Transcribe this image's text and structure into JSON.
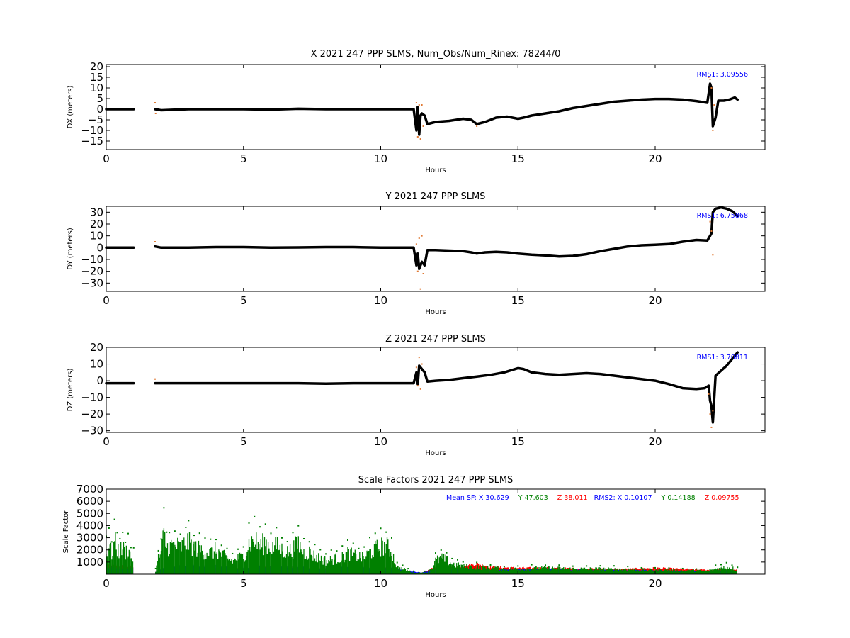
{
  "chart_data": [
    {
      "type": "scatter",
      "title": "X 2021 247 PPP  SLMS, Num_Obs/Num_Rinex: 78244/0",
      "xlabel": "Hours",
      "ylabel": "DX (meters)",
      "xlim": [
        0,
        24
      ],
      "ylim": [
        -19,
        21
      ],
      "xticks": [
        0,
        5,
        10,
        15,
        20
      ],
      "yticks": [
        -15,
        -10,
        -5,
        0,
        5,
        10,
        15,
        20
      ],
      "annotation": "RMS1:  3.09556",
      "annotation_color": "#0000ff",
      "series": [
        {
          "color": "#000000",
          "x": [
            0,
            0.5,
            1.0,
            null,
            1.78,
            2.0,
            3.0,
            4.0,
            5.0,
            6.0,
            7.0,
            8.0,
            9.0,
            10.0,
            11.2,
            11.3,
            11.35,
            11.4,
            11.45,
            11.5,
            11.6,
            11.7,
            12.0,
            12.5,
            13.0,
            13.3,
            13.5,
            13.8,
            14.2,
            14.6,
            15.0,
            15.2,
            15.5,
            16.0,
            16.5,
            17.0,
            17.5,
            18.0,
            18.5,
            19.0,
            19.5,
            20.0,
            20.5,
            21.0,
            21.5,
            21.9,
            22.0,
            22.05,
            22.1,
            22.2,
            22.3,
            22.5,
            22.7,
            22.9,
            23.0
          ],
          "y": [
            0,
            0,
            0,
            null,
            0,
            -0.5,
            0,
            0,
            0,
            -0.2,
            0.2,
            0,
            0,
            0,
            0,
            -10,
            1,
            -12,
            -3,
            -2,
            -3,
            -7,
            -6,
            -5.5,
            -4.5,
            -5,
            -7,
            -6,
            -4,
            -3.5,
            -4.5,
            -4,
            -3,
            -2,
            -1,
            0.5,
            1.5,
            2.5,
            3.5,
            4,
            4.5,
            4.8,
            4.8,
            4.5,
            3.8,
            3,
            12,
            10,
            -8,
            -4,
            4,
            4,
            4.5,
            5.5,
            4.5
          ]
        },
        {
          "color": "#e07a35",
          "x": [
            1.78,
            1.8,
            11.3,
            11.35,
            11.4,
            11.45,
            11.5,
            11.55,
            13.5,
            21.95,
            22.0,
            22.05,
            22.1,
            22.15
          ],
          "y": [
            3,
            -2,
            3,
            -13,
            2,
            -14,
            2,
            -8,
            -8,
            15,
            14,
            10,
            -10,
            2
          ]
        }
      ]
    },
    {
      "type": "scatter",
      "title": "Y 2021 247 PPP  SLMS",
      "xlabel": "Hours",
      "ylabel": "DY (meters)",
      "xlim": [
        0,
        24
      ],
      "ylim": [
        -37,
        35
      ],
      "xticks": [
        0,
        5,
        10,
        15,
        20
      ],
      "yticks": [
        -30,
        -20,
        -10,
        0,
        10,
        20,
        30
      ],
      "annotation": "RMS1:  6.75868",
      "annotation_color": "#0000ff",
      "series": [
        {
          "color": "#000000",
          "x": [
            0,
            0.5,
            1.0,
            null,
            1.78,
            2.0,
            3.0,
            4.0,
            5.0,
            6.0,
            7.0,
            8.0,
            9.0,
            10.0,
            11.2,
            11.3,
            11.35,
            11.4,
            11.5,
            11.6,
            11.7,
            12.0,
            12.5,
            13.0,
            13.3,
            13.5,
            13.8,
            14.2,
            14.6,
            15.0,
            15.5,
            16.0,
            16.5,
            17.0,
            17.5,
            18.0,
            18.5,
            19.0,
            19.5,
            20.0,
            20.5,
            21.0,
            21.5,
            21.9,
            22.0,
            22.05,
            22.1,
            22.2,
            22.4,
            22.6,
            22.8,
            23.0
          ],
          "y": [
            0,
            0,
            0,
            null,
            1,
            0,
            0,
            0.5,
            0.5,
            0,
            0.2,
            0.5,
            0.5,
            0,
            0,
            -15,
            -5,
            -18,
            -12,
            -15,
            -2,
            -2,
            -2.5,
            -3,
            -4,
            -5,
            -4,
            -3.5,
            -4,
            -5,
            -6,
            -6.5,
            -7.5,
            -7,
            -5.5,
            -3,
            -1,
            1,
            2,
            2.5,
            3,
            5,
            6.5,
            6,
            10,
            12,
            30,
            33,
            34,
            33,
            31,
            27
          ]
        },
        {
          "color": "#e07a35",
          "x": [
            1.78,
            11.3,
            11.35,
            11.4,
            11.45,
            11.5,
            11.55,
            22.0,
            22.05,
            22.1
          ],
          "y": [
            5,
            3,
            -20,
            8,
            -35,
            10,
            -22,
            22,
            14,
            -6
          ]
        }
      ]
    },
    {
      "type": "scatter",
      "title": "Z 2021 247 PPP  SLMS",
      "xlabel": "Hours",
      "ylabel": "DZ (meters)",
      "xlim": [
        0,
        24
      ],
      "ylim": [
        -31,
        20
      ],
      "xticks": [
        0,
        5,
        10,
        15,
        20
      ],
      "yticks": [
        -30,
        -20,
        -10,
        0,
        10,
        20
      ],
      "annotation": "RMS1:  3.70811",
      "annotation_color": "#0000ff",
      "series": [
        {
          "color": "#000000",
          "x": [
            0,
            0.5,
            1.0,
            null,
            1.78,
            2.0,
            3.0,
            4.0,
            5.0,
            6.0,
            7.0,
            8.0,
            9.0,
            10.0,
            11.2,
            11.3,
            11.35,
            11.4,
            11.5,
            11.6,
            11.7,
            12.0,
            12.5,
            13.0,
            13.5,
            14.0,
            14.5,
            15.0,
            15.2,
            15.5,
            16.0,
            16.5,
            17.0,
            17.5,
            18.0,
            18.5,
            19.0,
            19.5,
            20.0,
            20.5,
            21.0,
            21.5,
            21.8,
            21.95,
            22.0,
            22.05,
            22.1,
            22.2,
            22.4,
            22.6,
            22.8,
            23.0
          ],
          "y": [
            -1.5,
            -1.5,
            -1.5,
            null,
            -1.5,
            -1.5,
            -1.5,
            -1.5,
            -1.5,
            -1.5,
            -1.5,
            -1.8,
            -1.5,
            -1.5,
            -1.5,
            5,
            -2,
            9,
            7,
            5,
            -0.5,
            0,
            0.5,
            1.5,
            2.5,
            3.5,
            5,
            7.5,
            7,
            5,
            4,
            3.5,
            4,
            4.5,
            4,
            3,
            2,
            1,
            0,
            -2,
            -4.5,
            -5,
            -4.5,
            -3,
            -12,
            -15,
            -25,
            3,
            6,
            9,
            13,
            17
          ]
        },
        {
          "color": "#e07a35",
          "x": [
            1.78,
            11.3,
            11.35,
            11.4,
            11.45,
            11.5,
            21.95,
            22.0,
            22.05,
            22.1
          ],
          "y": [
            1,
            8,
            -3,
            14,
            -5,
            10,
            -8,
            -20,
            -28,
            -18
          ]
        }
      ]
    },
    {
      "type": "scatter",
      "title": "Scale Factors 2021 247 PPP  SLMS",
      "xlabel": "Hours",
      "ylabel": "Scale Factor",
      "xlim": [
        0,
        24
      ],
      "ylim": [
        0,
        7000
      ],
      "xticks": [
        0,
        5,
        10,
        15,
        20
      ],
      "yticks": [
        1000,
        2000,
        3000,
        4000,
        5000,
        6000,
        7000
      ],
      "annotation_parts": [
        {
          "text": "Mean SF: X  30.629",
          "color": "#0000ff"
        },
        {
          "text": "Y  47.603",
          "color": "#008000"
        },
        {
          "text": "Z  38.011",
          "color": "#ff0000"
        },
        {
          "text": "RMS2: X  0.10107",
          "color": "#0000ff"
        },
        {
          "text": "Y  0.14188",
          "color": "#008000"
        },
        {
          "text": "Z  0.09755",
          "color": "#ff0000"
        }
      ],
      "series": [
        {
          "color": "#ff0000",
          "x": [
            0,
            0.5,
            1.0,
            null,
            1.8,
            2.2,
            3.0,
            4.0,
            5.0,
            6.0,
            7.0,
            8.0,
            9.0,
            10.0,
            10.5,
            11.0,
            11.5,
            12.0,
            12.5,
            13.0,
            13.5,
            14.0,
            15.0,
            16.0,
            17.0,
            18.0,
            19.0,
            20.0,
            21.0,
            22.0,
            22.5,
            23.0
          ],
          "y": [
            900,
            800,
            700,
            null,
            200,
            700,
            700,
            600,
            500,
            700,
            600,
            500,
            500,
            700,
            500,
            250,
            100,
            700,
            700,
            800,
            1000,
            700,
            600,
            600,
            550,
            500,
            500,
            600,
            500,
            400,
            500,
            400
          ]
        },
        {
          "color": "#0000ff",
          "x": [
            0,
            0.5,
            1.0,
            null,
            1.8,
            2.2,
            3.0,
            4.0,
            5.0,
            5.5,
            6.0,
            7.0,
            8.0,
            9.0,
            10.0,
            10.5,
            11.0,
            11.5,
            12.0,
            12.5,
            13.0,
            14.0,
            15.0,
            16.0,
            17.0,
            18.0,
            19.0,
            20.0,
            21.0,
            22.0,
            22.5,
            23.0
          ],
          "y": [
            700,
            600,
            550,
            null,
            200,
            800,
            900,
            800,
            600,
            800,
            700,
            700,
            600,
            650,
            700,
            600,
            300,
            150,
            500,
            500,
            500,
            400,
            450,
            500,
            450,
            400,
            350,
            400,
            300,
            300,
            400,
            300
          ]
        },
        {
          "color": "#008000",
          "x": [
            0,
            0.1,
            0.2,
            0.3,
            0.4,
            0.5,
            0.6,
            0.7,
            0.8,
            0.9,
            1.0,
            null,
            1.8,
            1.9,
            2.0,
            2.1,
            2.2,
            2.3,
            2.5,
            2.7,
            2.9,
            3.0,
            3.2,
            3.4,
            3.6,
            3.8,
            4.0,
            4.2,
            4.4,
            4.6,
            4.8,
            5.0,
            5.2,
            5.4,
            5.6,
            5.8,
            6.0,
            6.2,
            6.4,
            6.6,
            6.8,
            7.0,
            7.2,
            7.4,
            7.6,
            7.8,
            8.0,
            8.2,
            8.4,
            8.6,
            8.8,
            9.0,
            9.2,
            9.4,
            9.6,
            9.8,
            10.0,
            10.2,
            10.4,
            10.6,
            10.8,
            11.0,
            11.2,
            11.4,
            11.6,
            11.8,
            12.0,
            12.2,
            12.4,
            12.6,
            12.8,
            13.0,
            13.5,
            14.0,
            14.5,
            15.0,
            15.5,
            16.0,
            16.5,
            17.0,
            17.5,
            18.0,
            18.5,
            19.0,
            19.5,
            20.0,
            20.5,
            21.0,
            21.5,
            22.0,
            22.2,
            22.4,
            22.6,
            22.8,
            23.0
          ],
          "y": [
            2500,
            3500,
            2200,
            3800,
            2800,
            2600,
            3000,
            2500,
            2800,
            2000,
            1800,
            null,
            400,
            1800,
            2500,
            4500,
            3000,
            3200,
            3300,
            3000,
            3500,
            3600,
            3000,
            2800,
            2600,
            2400,
            2700,
            2200,
            1800,
            1500,
            1800,
            2000,
            3500,
            3800,
            3200,
            3600,
            3000,
            3200,
            2800,
            2500,
            2800,
            3500,
            2400,
            2500,
            2000,
            1800,
            1500,
            1600,
            1800,
            1900,
            2400,
            2100,
            2000,
            1800,
            2500,
            2800,
            3100,
            3200,
            2500,
            800,
            600,
            400,
            200,
            100,
            200,
            300,
            1500,
            1800,
            1600,
            1200,
            1000,
            900,
            800,
            700,
            600,
            600,
            650,
            700,
            650,
            600,
            600,
            600,
            550,
            550,
            500,
            500,
            450,
            400,
            400,
            350,
            600,
            700,
            800,
            700,
            500
          ]
        }
      ]
    }
  ]
}
